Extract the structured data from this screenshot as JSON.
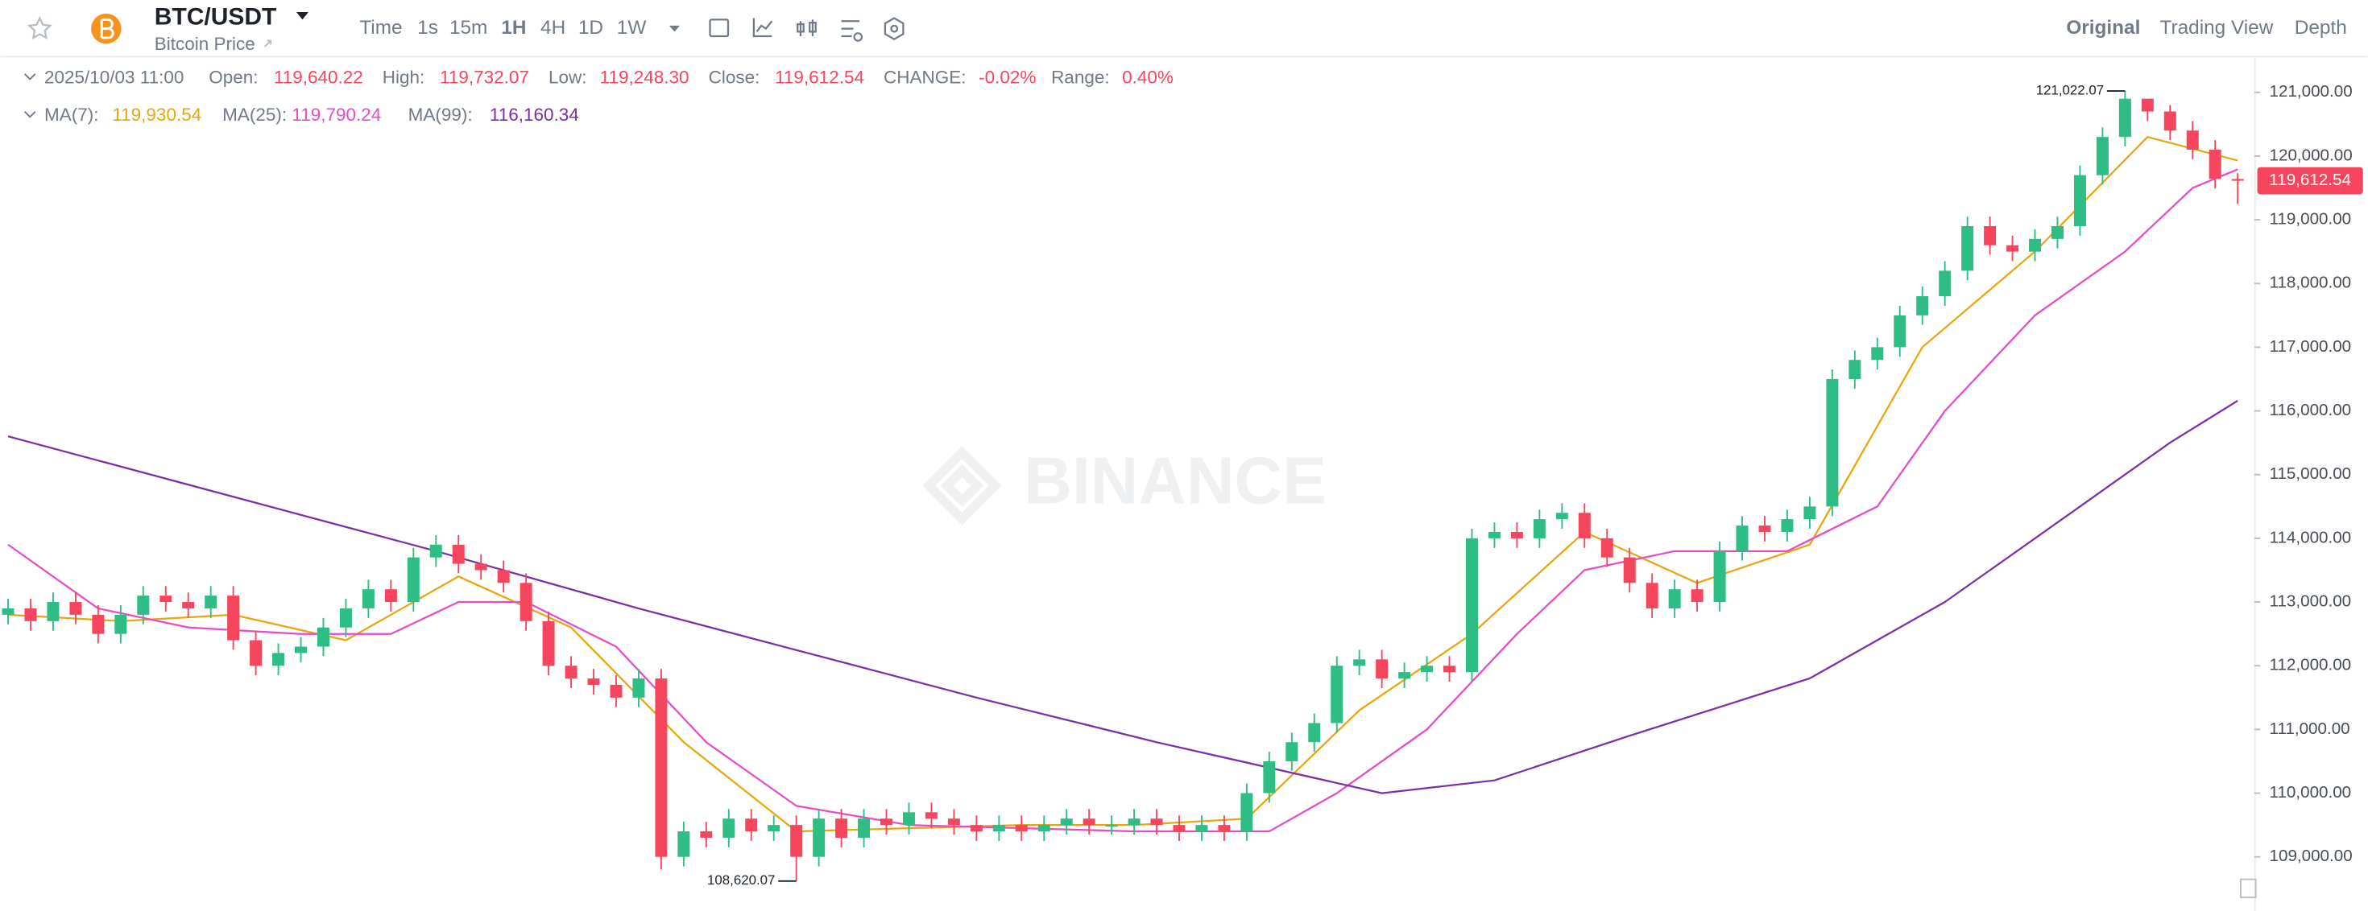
{
  "header": {
    "pair": "BTC/USDT",
    "subtitle": "Bitcoin Price"
  },
  "toolbar": {
    "intervals": [
      "Time",
      "1s",
      "15m",
      "1H",
      "4H",
      "1D",
      "1W"
    ],
    "active_interval": 3,
    "views": [
      "Original",
      "Trading View",
      "Depth"
    ],
    "active_view": 0
  },
  "ohlc_info": {
    "time": "2025/10/03 11:00",
    "items": [
      {
        "label": "Open:",
        "value": "119,640.22"
      },
      {
        "label": "High:",
        "value": "119,732.07"
      },
      {
        "label": "Low:",
        "value": "119,248.30"
      },
      {
        "label": "Close:",
        "value": "119,612.54"
      },
      {
        "label": "CHANGE:",
        "value": "-0.02%"
      },
      {
        "label": "Range:",
        "value": "0.40%"
      }
    ]
  },
  "watermark": "BINANCE",
  "chart_data": {
    "type": "candlestick",
    "up_color": "#2ebd85",
    "down_color": "#f6465d",
    "open": [
      112800,
      112900,
      112700,
      113000,
      112800,
      112500,
      112800,
      113100,
      113000,
      112900,
      113100,
      112400,
      112000,
      112200,
      112300,
      112600,
      112900,
      113200,
      113000,
      113700,
      113900,
      113600,
      113500,
      113300,
      112700,
      112000,
      111800,
      111700,
      111500,
      111800,
      109000,
      109400,
      109300,
      109600,
      109400,
      109500,
      109000,
      109600,
      109300,
      109600,
      109500,
      109700,
      109600,
      109500,
      109400,
      109500,
      109400,
      109500,
      109600,
      109500,
      109500,
      109600,
      109500,
      109400,
      109500,
      109400,
      110000,
      110500,
      110800,
      111100,
      112000,
      112100,
      111800,
      111900,
      112000,
      111900,
      114000,
      114100,
      114000,
      114300,
      114400,
      114000,
      113700,
      113300,
      112900,
      113200,
      113000,
      113800,
      114200,
      114100,
      114300,
      114500,
      116500,
      116800,
      117000,
      117500,
      117800,
      118200,
      118900,
      118600,
      118500,
      118700,
      118900,
      119700,
      120300,
      120900,
      120700,
      120400,
      120100,
      119640.22
    ],
    "high": [
      113050,
      113050,
      113150,
      113150,
      112950,
      112950,
      113250,
      113250,
      113150,
      113250,
      113250,
      112550,
      112350,
      112450,
      112750,
      113050,
      113350,
      113350,
      113850,
      114050,
      114050,
      113750,
      113650,
      113450,
      112850,
      112150,
      111950,
      111850,
      111950,
      111950,
      109550,
      109550,
      109750,
      109750,
      109650,
      109650,
      109750,
      109750,
      109750,
      109750,
      109850,
      109850,
      109750,
      109650,
      109650,
      109650,
      109650,
      109750,
      109750,
      109650,
      109750,
      109750,
      109650,
      109650,
      109650,
      110150,
      110650,
      110950,
      111250,
      112150,
      112250,
      112250,
      112050,
      112150,
      112150,
      114150,
      114250,
      114250,
      114450,
      114550,
      114550,
      114150,
      113850,
      113450,
      113350,
      113350,
      113950,
      114350,
      114350,
      114450,
      114650,
      116650,
      116950,
      117150,
      117650,
      117950,
      118350,
      119050,
      119050,
      118750,
      118850,
      119050,
      119850,
      120450,
      121022.07,
      120850,
      120800,
      120550,
      120250,
      119732.07
    ],
    "low": [
      112650,
      112550,
      112550,
      112650,
      112350,
      112350,
      112650,
      112850,
      112750,
      112750,
      112250,
      111850,
      111850,
      112050,
      112150,
      112450,
      112750,
      112850,
      112850,
      113550,
      113450,
      113350,
      113150,
      112550,
      111850,
      111650,
      111550,
      111350,
      111350,
      108800,
      108850,
      109150,
      109150,
      109250,
      109250,
      108620.07,
      108850,
      109150,
      109150,
      109350,
      109350,
      109450,
      109350,
      109250,
      109250,
      109250,
      109250,
      109350,
      109350,
      109350,
      109350,
      109350,
      109250,
      109250,
      109250,
      109250,
      109850,
      110350,
      110650,
      110950,
      111850,
      111650,
      111650,
      111750,
      111750,
      111750,
      113850,
      113850,
      113850,
      114150,
      113850,
      113550,
      113150,
      112750,
      112750,
      112850,
      112850,
      113650,
      113950,
      113950,
      114150,
      114350,
      116350,
      116650,
      116850,
      117350,
      117650,
      118050,
      118450,
      118350,
      118350,
      118550,
      118750,
      119550,
      120150,
      120550,
      120250,
      119950,
      119490,
      119248.3
    ],
    "close": [
      112900,
      112700,
      113000,
      112800,
      112500,
      112800,
      113100,
      113000,
      112900,
      113100,
      112400,
      112000,
      112200,
      112300,
      112600,
      112900,
      113200,
      113000,
      113700,
      113900,
      113600,
      113500,
      113300,
      112700,
      112000,
      111800,
      111700,
      111500,
      111800,
      109000,
      109400,
      109300,
      109600,
      109400,
      109500,
      109000,
      109600,
      109300,
      109600,
      109500,
      109700,
      109600,
      109500,
      109400,
      109500,
      109400,
      109500,
      109600,
      109500,
      109500,
      109600,
      109500,
      109400,
      109500,
      109400,
      110000,
      110500,
      110800,
      111100,
      112000,
      112100,
      111800,
      111900,
      112000,
      111900,
      114000,
      114100,
      114000,
      114300,
      114400,
      114000,
      113700,
      113300,
      112900,
      113200,
      113000,
      113800,
      114200,
      114100,
      114300,
      114500,
      116500,
      116800,
      117000,
      117500,
      117800,
      118200,
      118900,
      118600,
      118500,
      118700,
      118900,
      119700,
      120300,
      120900,
      120700,
      120400,
      120100,
      119640.22,
      119612.54
    ],
    "series": [
      {
        "name": "MA(7):",
        "color": "#e9a60c",
        "value_label": "119,930.54",
        "x": [
          0,
          5,
          10,
          15,
          20,
          25,
          30,
          35,
          40,
          45,
          50,
          55,
          60,
          65,
          70,
          75,
          80,
          85,
          90,
          95,
          99
        ],
        "values": [
          112800,
          112700,
          112800,
          112400,
          113400,
          112600,
          110800,
          109400,
          109450,
          109500,
          109500,
          109600,
          111300,
          112500,
          114100,
          113300,
          113900,
          117000,
          118500,
          120300,
          119930.54
        ]
      },
      {
        "name": "MA(25):",
        "color": "#e64bc9",
        "value_label": "119,790.24",
        "x": [
          0,
          4,
          8,
          13,
          17,
          20,
          23,
          27,
          31,
          35,
          40,
          50,
          56,
          59,
          63,
          67,
          70,
          74,
          79,
          83,
          86,
          90,
          94,
          97,
          99
        ],
        "values": [
          113900,
          112900,
          112600,
          112500,
          112500,
          113000,
          113000,
          112300,
          110800,
          109800,
          109500,
          109400,
          109400,
          110000,
          111000,
          112500,
          113500,
          113800,
          113800,
          114500,
          116000,
          117500,
          118500,
          119500,
          119790.24
        ]
      },
      {
        "name": "MA(99):",
        "color": "#7b2fa6",
        "value_label": "116,160.34",
        "x": [
          0,
          19,
          28,
          43,
          51,
          61,
          66,
          72,
          80,
          86,
          92,
          96,
          99
        ],
        "values": [
          115600,
          113800,
          112900,
          111500,
          110800,
          110000,
          110200,
          110900,
          111800,
          113000,
          114500,
          115500,
          116160.34
        ]
      }
    ],
    "ylim": [
      108150,
      121550
    ],
    "yticks": [
      {
        "value": 109000,
        "label": "109,000.00"
      },
      {
        "value": 110000,
        "label": "110,000.00"
      },
      {
        "value": 111000,
        "label": "111,000.00"
      },
      {
        "value": 112000,
        "label": "112,000.00"
      },
      {
        "value": 113000,
        "label": "113,000.00"
      },
      {
        "value": 114000,
        "label": "114,000.00"
      },
      {
        "value": 115000,
        "label": "115,000.00"
      },
      {
        "value": 116000,
        "label": "116,000.00"
      },
      {
        "value": 117000,
        "label": "117,000.00"
      },
      {
        "value": 118000,
        "label": "118,000.00"
      },
      {
        "value": 119000,
        "label": "119,000.00"
      },
      {
        "value": 120000,
        "label": "120,000.00"
      },
      {
        "value": 121000,
        "label": "121,000.00"
      }
    ],
    "high_label": "121,022.07",
    "low_label": "108,620.07",
    "price_tag": "119,612.54"
  }
}
